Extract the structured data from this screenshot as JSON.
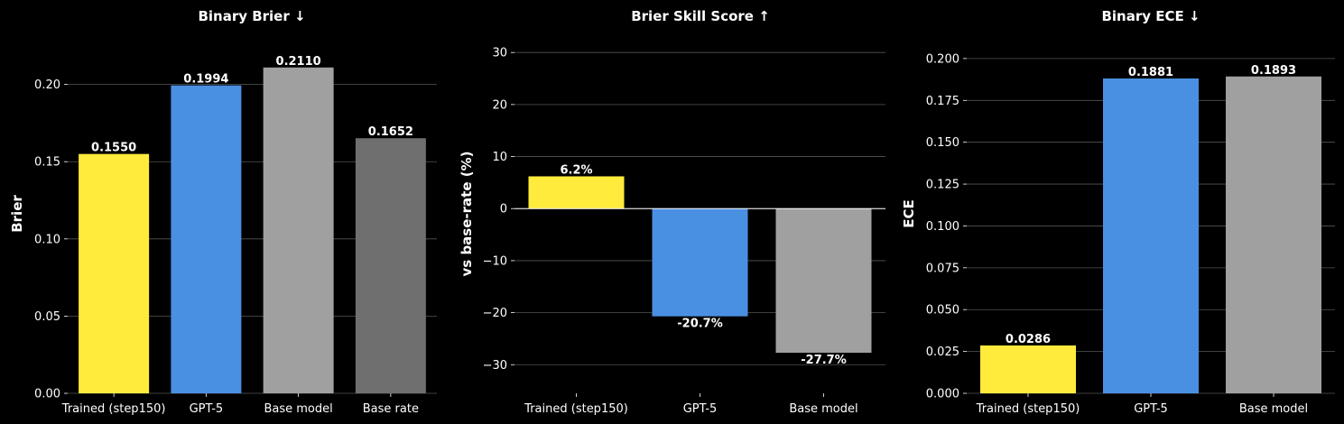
{
  "chart_data": [
    {
      "type": "bar",
      "title": "Binary Brier ↓",
      "ylabel": "Brier",
      "categories": [
        "Trained (step150)",
        "GPT-5",
        "Base model",
        "Base rate"
      ],
      "values": [
        0.155,
        0.1994,
        0.211,
        0.1652
      ],
      "value_labels": [
        "0.1550",
        "0.1994",
        "0.2110",
        "0.1652"
      ],
      "colors": [
        "#ffeb3b",
        "#4a90e2",
        "#a0a0a0",
        "#6f6f6f"
      ],
      "ylim": [
        0,
        0.2325
      ],
      "yticks": [
        0.0,
        0.05,
        0.1,
        0.15,
        0.2
      ],
      "ytick_labels": [
        "0.00",
        "0.05",
        "0.10",
        "0.15",
        "0.20"
      ],
      "grid": true,
      "zero_line": false
    },
    {
      "type": "bar",
      "title": "Brier Skill Score ↑",
      "ylabel": "vs base-rate (%)",
      "categories": [
        "Trained (step150)",
        "GPT-5",
        "Base model"
      ],
      "values": [
        6.2,
        -20.7,
        -27.7
      ],
      "value_labels": [
        "6.2%",
        "-20.7%",
        "-27.7%"
      ],
      "colors": [
        "#ffeb3b",
        "#4a90e2",
        "#a0a0a0"
      ],
      "ylim": [
        -35.5,
        33.5
      ],
      "yticks": [
        -30,
        -20,
        -10,
        0,
        10,
        20,
        30
      ],
      "ytick_labels": [
        "−30",
        "−20",
        "−10",
        "0",
        "10",
        "20",
        "30"
      ],
      "grid": true,
      "zero_line": true
    },
    {
      "type": "bar",
      "title": "Binary ECE ↓",
      "ylabel": "ECE",
      "categories": [
        "Trained (step150)",
        "GPT-5",
        "Base model"
      ],
      "values": [
        0.0286,
        0.1881,
        0.1893
      ],
      "value_labels": [
        "0.0286",
        "0.1881",
        "0.1893"
      ],
      "colors": [
        "#ffeb3b",
        "#4a90e2",
        "#a0a0a0"
      ],
      "ylim": [
        0,
        0.2145
      ],
      "yticks": [
        0.0,
        0.025,
        0.05,
        0.075,
        0.1,
        0.125,
        0.15,
        0.175,
        0.2
      ],
      "ytick_labels": [
        "0.000",
        "0.025",
        "0.050",
        "0.075",
        "0.100",
        "0.125",
        "0.150",
        "0.175",
        "0.200"
      ],
      "grid": true,
      "zero_line": false
    }
  ]
}
